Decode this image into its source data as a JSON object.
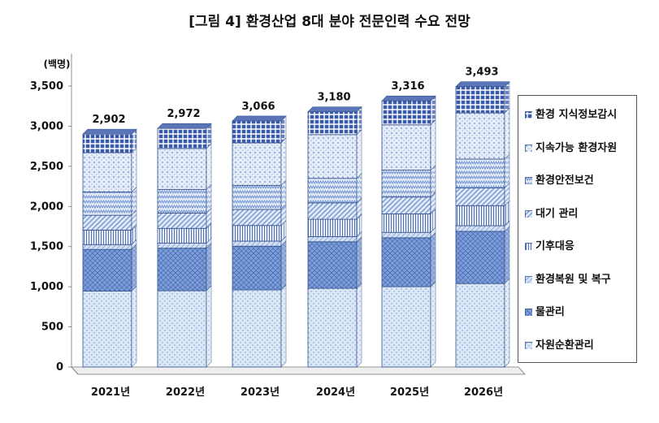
{
  "chart_data": {
    "type": "bar",
    "stacked": true,
    "title": "[그림 4] 환경산업 8대 분야 전문인력 수요 전망",
    "unit_label": "(백명)",
    "categories": [
      "2021년",
      "2022년",
      "2023년",
      "2024년",
      "2025년",
      "2026년"
    ],
    "totals": [
      "2,902",
      "2,972",
      "3,066",
      "3,180",
      "3,316",
      "3,493"
    ],
    "ylim": [
      0,
      3500
    ],
    "yticks": [
      "0",
      "500",
      "1,000",
      "1,500",
      "2,000",
      "2,500",
      "3,000",
      "3,500"
    ],
    "legend_position": "right",
    "grid": false,
    "series": [
      {
        "name": "자원순환관리",
        "values": [
          945,
          950,
          960,
          980,
          1000,
          1040
        ]
      },
      {
        "name": "물관리",
        "values": [
          520,
          530,
          545,
          580,
          610,
          650
        ]
      },
      {
        "name": "환경복원 및 복구",
        "values": [
          60,
          62,
          63,
          65,
          67,
          70
        ]
      },
      {
        "name": "기후대응",
        "values": [
          180,
          185,
          195,
          215,
          230,
          250
        ]
      },
      {
        "name": "대기 관리",
        "values": [
          185,
          190,
          200,
          205,
          210,
          220
        ]
      },
      {
        "name": "환경안전보건",
        "values": [
          290,
          295,
          300,
          305,
          335,
          360
        ]
      },
      {
        "name": "지속가능 환경자원",
        "values": [
          490,
          510,
          530,
          545,
          565,
          575
        ]
      },
      {
        "name": "환경 지식정보감시",
        "values": [
          232,
          250,
          273,
          285,
          299,
          328
        ]
      }
    ]
  },
  "colors": {
    "border": "#33508c",
    "series_fill": [
      "#dde8f7",
      "#7f9fd6",
      "#d6e2f4",
      "#e8eff9",
      "#e3ebf7",
      "#dfe8f6",
      "#e6edf9",
      "#3b5aa8"
    ],
    "series_pattern": [
      "#6d8fcf",
      "#4e71bb",
      "#7f9fd6",
      "#3f63b3",
      "#7f9fd6",
      "#6d8fcf",
      "#7f9fd6",
      "#ffffff"
    ]
  },
  "legend_order": [
    7,
    6,
    5,
    4,
    3,
    2,
    1,
    0
  ]
}
